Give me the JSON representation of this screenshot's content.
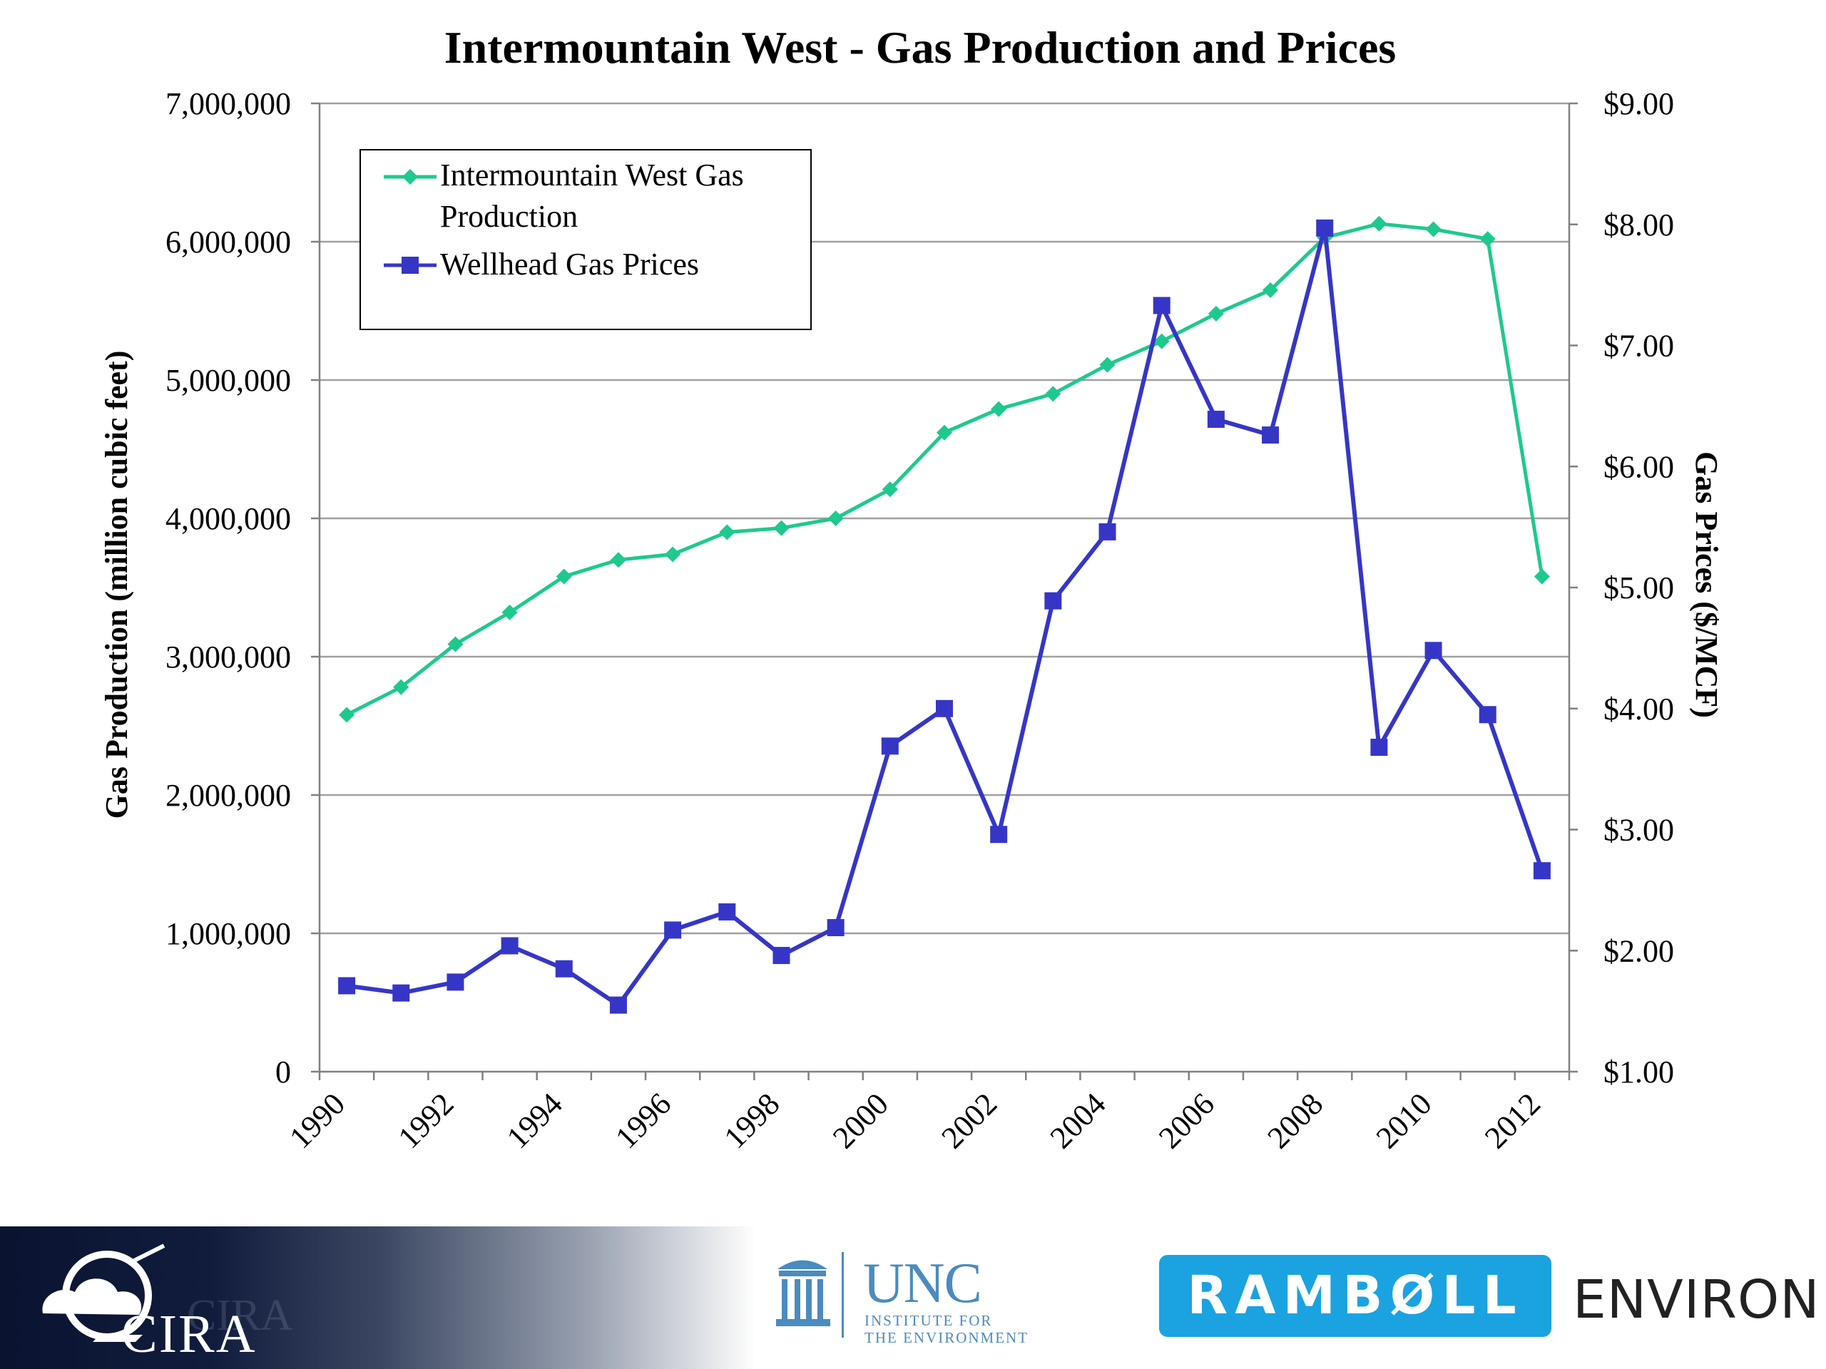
{
  "chart_data": {
    "type": "line",
    "title": "Intermountain West - Gas Production and Prices",
    "ylabel_left": "Gas Production (million cubic feet)",
    "ylabel_right": "Gas Prices ($/MCF)",
    "ylim_left": [
      0,
      7000000
    ],
    "ylim_right": [
      1.0,
      9.0
    ],
    "left_ticks": [
      "0",
      "1,000,000",
      "2,000,000",
      "3,000,000",
      "4,000,000",
      "5,000,000",
      "6,000,000",
      "7,000,000"
    ],
    "right_ticks": [
      "$1.00",
      "$2.00",
      "$3.00",
      "$4.00",
      "$5.00",
      "$6.00",
      "$7.00",
      "$8.00",
      "$9.00"
    ],
    "x_tick_labels": [
      "1990",
      "1992",
      "1994",
      "1996",
      "1998",
      "2000",
      "2002",
      "2004",
      "2006",
      "2008",
      "2010",
      "2012"
    ],
    "x": [
      1990,
      1991,
      1992,
      1993,
      1994,
      1995,
      1996,
      1997,
      1998,
      1999,
      2000,
      2001,
      2002,
      2003,
      2004,
      2005,
      2006,
      2007,
      2008,
      2009,
      2010,
      2011,
      2012
    ],
    "grid": true,
    "legend_position": "top-left",
    "series": [
      {
        "name": "Intermountain West Gas Production",
        "axis": "left",
        "color": "#1ec98e",
        "marker": "diamond",
        "values": [
          2580000,
          2780000,
          3090000,
          3320000,
          3580000,
          3700000,
          3740000,
          3900000,
          3930000,
          4000000,
          4210000,
          4620000,
          4790000,
          4900000,
          5110000,
          5280000,
          5480000,
          5650000,
          6030000,
          6130000,
          6090000,
          6020000,
          3580000
        ]
      },
      {
        "name": "Wellhead Gas Prices",
        "axis": "right",
        "color": "#3636c6",
        "marker": "square",
        "values": [
          1.71,
          1.65,
          1.74,
          2.04,
          1.85,
          1.55,
          2.17,
          2.32,
          1.96,
          2.19,
          3.69,
          4.0,
          2.96,
          4.89,
          5.46,
          7.33,
          6.39,
          6.26,
          7.97,
          3.68,
          4.48,
          3.95,
          2.66
        ]
      }
    ]
  },
  "legend": {
    "production_line1": "Intermountain West Gas",
    "production_line2": "Production",
    "prices": "Wellhead Gas Prices"
  },
  "logos": {
    "cira": "CIRA",
    "unc": "UNC",
    "unc_sub_line1": "INSTITUTE FOR",
    "unc_sub_line2": "THE ENVIRONMENT",
    "ramboll": "RAMBØLL",
    "environ": "ENVIRON"
  }
}
